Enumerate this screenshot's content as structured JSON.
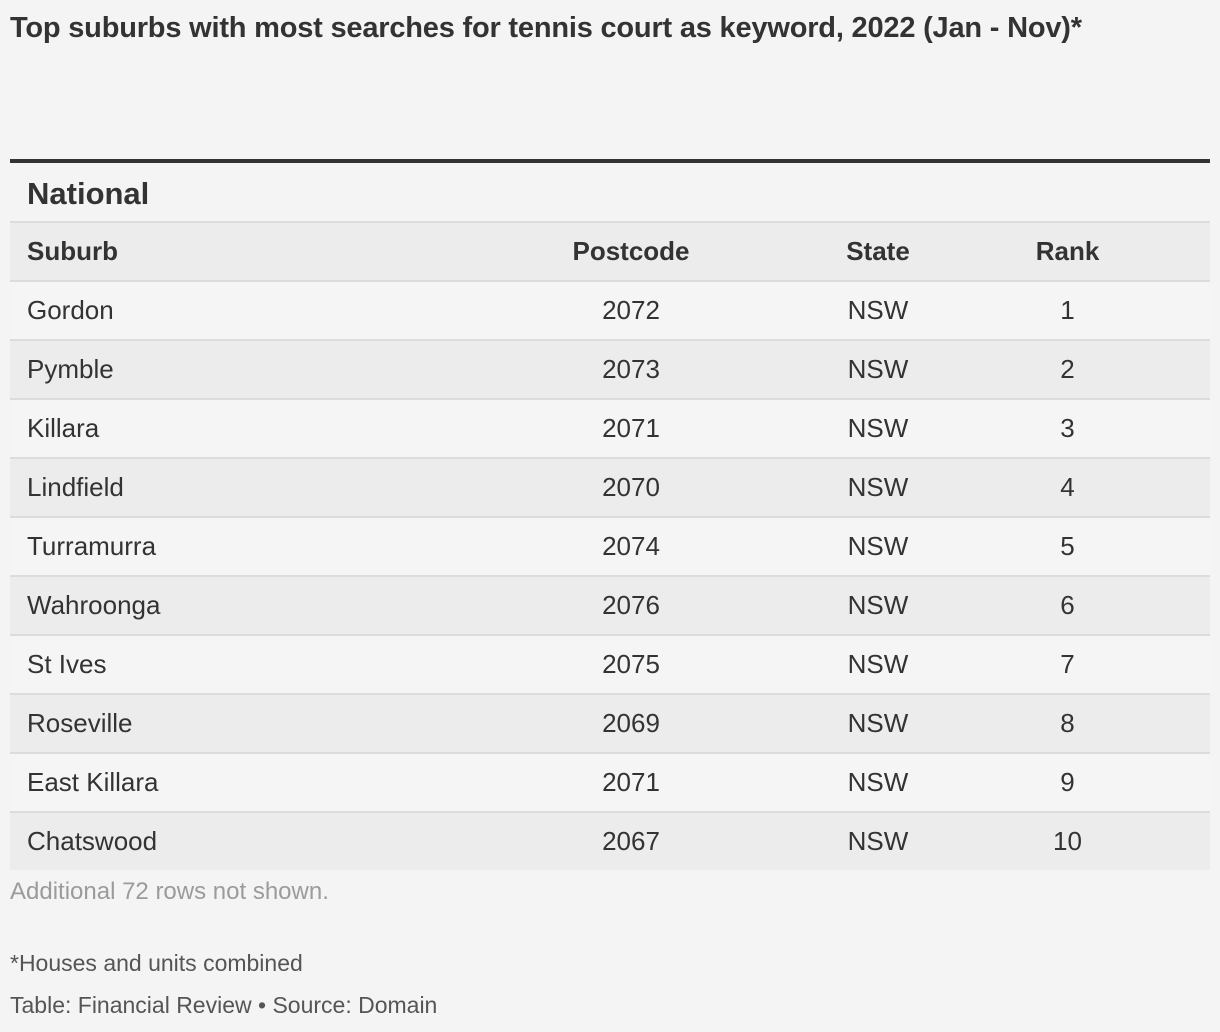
{
  "title": "Top suburbs with most searches for tennis court as keyword, 2022 (Jan - Nov)*",
  "section_title": "National",
  "columns": {
    "suburb": "Suburb",
    "postcode": "Postcode",
    "state": "State",
    "rank": "Rank"
  },
  "rows": [
    {
      "suburb": "Gordon",
      "postcode": "2072",
      "state": "NSW",
      "rank": "1"
    },
    {
      "suburb": "Pymble",
      "postcode": "2073",
      "state": "NSW",
      "rank": "2"
    },
    {
      "suburb": "Killara",
      "postcode": "2071",
      "state": "NSW",
      "rank": "3"
    },
    {
      "suburb": "Lindfield",
      "postcode": "2070",
      "state": "NSW",
      "rank": "4"
    },
    {
      "suburb": "Turramurra",
      "postcode": "2074",
      "state": "NSW",
      "rank": "5"
    },
    {
      "suburb": "Wahroonga",
      "postcode": "2076",
      "state": "NSW",
      "rank": "6"
    },
    {
      "suburb": "St Ives",
      "postcode": "2075",
      "state": "NSW",
      "rank": "7"
    },
    {
      "suburb": "Roseville",
      "postcode": "2069",
      "state": "NSW",
      "rank": "8"
    },
    {
      "suburb": "East Killara",
      "postcode": "2071",
      "state": "NSW",
      "rank": "9"
    },
    {
      "suburb": "Chatswood",
      "postcode": "2067",
      "state": "NSW",
      "rank": "10"
    }
  ],
  "rows_note": "Additional 72 rows not shown.",
  "footnote": "*Houses and units combined",
  "credit": "Table: Financial Review • Source: Domain",
  "colors": {
    "background": "#f4f4f4",
    "text": "#333333",
    "row_alt": "#ececec",
    "rule": "#333333"
  }
}
